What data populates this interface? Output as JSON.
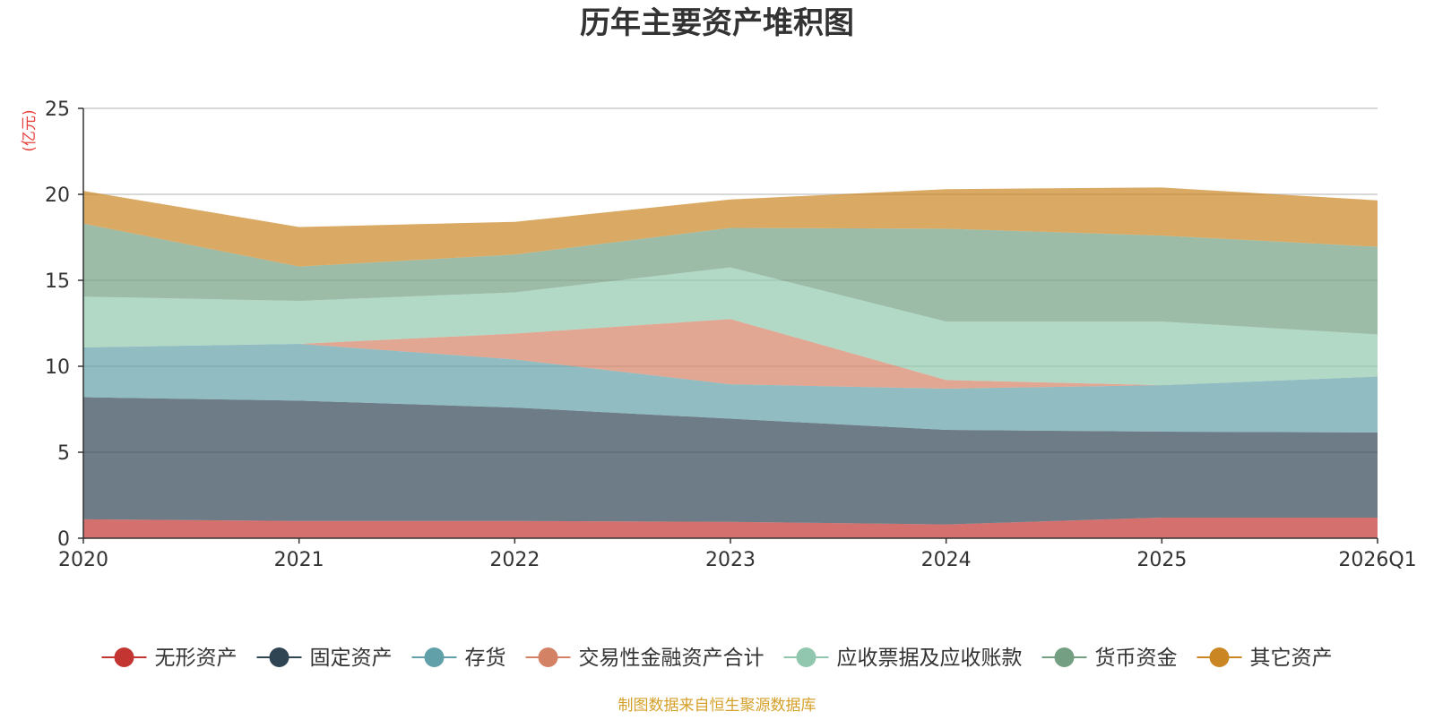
{
  "chart_data": {
    "type": "area",
    "stacked": true,
    "title": "历年主要资产堆积图",
    "ylabel": "(亿元)",
    "xlabel": "",
    "ylim": [
      0,
      25
    ],
    "yticks": [
      0,
      5,
      10,
      15,
      20,
      25
    ],
    "grid": true,
    "legend_position": "bottom",
    "categories": [
      "2020",
      "2021",
      "2022",
      "2023",
      "2024",
      "2025",
      "2026Q1"
    ],
    "series": [
      {
        "name": "无形资产",
        "color": "#c23531",
        "values": [
          1.1,
          1.0,
          1.0,
          0.95,
          0.8,
          1.2,
          1.2
        ]
      },
      {
        "name": "固定资产",
        "color": "#2f4554",
        "values": [
          7.1,
          7.0,
          6.6,
          6.0,
          5.5,
          5.0,
          4.95
        ]
      },
      {
        "name": "存货",
        "color": "#61a0a8",
        "values": [
          2.9,
          3.3,
          2.8,
          2.0,
          2.4,
          2.7,
          3.25
        ]
      },
      {
        "name": "交易性金融资产合计",
        "color": "#d48265",
        "values": [
          0.0,
          0.0,
          1.5,
          3.8,
          0.5,
          0.0,
          0.0
        ]
      },
      {
        "name": "应收票据及应收账款",
        "color": "#91c7ae",
        "values": [
          2.95,
          2.5,
          2.4,
          3.0,
          3.4,
          3.7,
          2.45
        ]
      },
      {
        "name": "货币资金",
        "color": "#749f83",
        "values": [
          4.25,
          2.0,
          2.2,
          2.3,
          5.4,
          5.0,
          5.1
        ]
      },
      {
        "name": "其它资产",
        "color": "#ca8622",
        "values": [
          1.9,
          2.3,
          1.9,
          1.65,
          2.3,
          2.8,
          2.7
        ]
      }
    ]
  },
  "source_note": "制图数据来自恒生聚源数据库"
}
